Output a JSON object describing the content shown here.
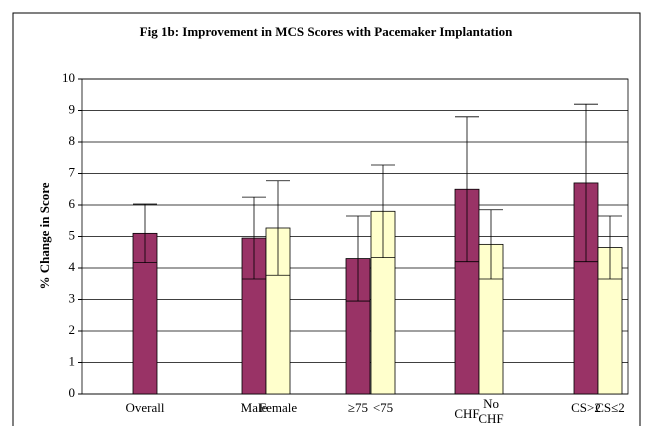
{
  "chart_data": {
    "type": "bar",
    "title": "Fig 1b: Improvement in MCS Scores with Pacemaker Implantation",
    "y_label": "% Change in Score",
    "categories": [
      "Overall",
      "Male",
      "Female",
      "≥75",
      "<75",
      "CHF",
      "No CHF",
      "CS>2",
      "CS≤2"
    ],
    "values": [
      5.1,
      4.95,
      5.27,
      4.3,
      5.8,
      6.5,
      4.75,
      6.7,
      4.65
    ],
    "errors": [
      0.93,
      1.3,
      1.5,
      1.35,
      1.47,
      2.3,
      1.1,
      2.5,
      1.0
    ],
    "colors": [
      "#993366",
      "#993366",
      "#ffffcc",
      "#993366",
      "#ffffcc",
      "#993366",
      "#ffffcc",
      "#993366",
      "#ffffcc"
    ],
    "ylim": [
      0,
      10
    ],
    "yticks": [
      0,
      1,
      2,
      3,
      4,
      5,
      6,
      7,
      8,
      9,
      10
    ],
    "grid": true
  }
}
